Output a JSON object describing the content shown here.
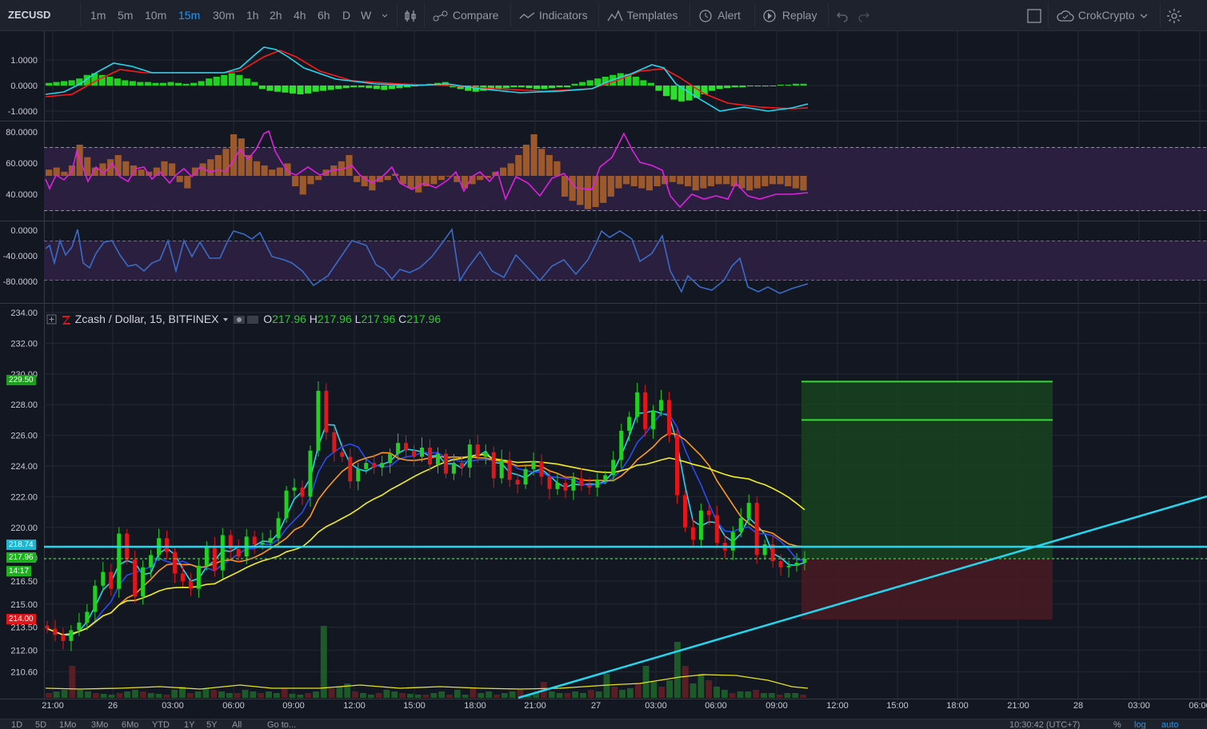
{
  "toolbar": {
    "symbol": "ZECUSD",
    "intervals": [
      "1m",
      "5m",
      "10m",
      "15m",
      "30m",
      "1h",
      "2h",
      "4h",
      "6h",
      "D",
      "W"
    ],
    "active_interval": "15m",
    "compare_label": "Compare",
    "indicators_label": "Indicators",
    "templates_label": "Templates",
    "alert_label": "Alert",
    "replay_label": "Replay",
    "account_label": "CrokCrypto"
  },
  "legend": {
    "symbol_name": "Zcash / Dollar, 15, BITFINEX",
    "open_label": "O",
    "open": "217.96",
    "high_label": "H",
    "high": "217.96",
    "low_label": "L",
    "low": "217.96",
    "close_label": "C",
    "close": "217.96"
  },
  "panes": {
    "macd_axis": [
      "1.0000",
      "0.0000",
      "-1.0000"
    ],
    "rsi_axis": [
      "80.0000",
      "60.0000",
      "40.0000"
    ],
    "wpr_axis": [
      "0.0000",
      "-40.0000",
      "-80.0000"
    ],
    "price_axis": [
      "234.00",
      "232.00",
      "230.00",
      "228.00",
      "226.00",
      "224.00",
      "222.00",
      "220.00",
      "218.00",
      "216.50",
      "215.00",
      "213.50",
      "212.00",
      "210.60"
    ]
  },
  "price_tags": {
    "target": "229.50",
    "level_line": "218.74",
    "current": "217.96",
    "countdown": "14:17",
    "stop": "214.00",
    "colors": {
      "target": "#1b9e1b",
      "level_line": "#1ab6d6",
      "current": "#1fb01f",
      "stop": "#e0161d"
    }
  },
  "time_axis": [
    "21:00",
    "26",
    "03:00",
    "06:00",
    "09:00",
    "12:00",
    "15:00",
    "18:00",
    "21:00",
    "27",
    "03:00",
    "06:00",
    "09:00",
    "12:00",
    "15:00",
    "18:00",
    "21:00",
    "28",
    "03:00",
    "06:00"
  ],
  "bottom_bar": {
    "ranges": [
      "1D",
      "5D",
      "1Mo",
      "3Mo",
      "6Mo",
      "YTD",
      "1Y",
      "5Y",
      "All"
    ],
    "goto": "Go to...",
    "clock": "10:30:42 (UTC+7)",
    "pct": "%",
    "log": "log",
    "auto": "auto"
  },
  "chart_data": {
    "type": "candlestick",
    "symbol": "Zcash / Dollar, 15, BITFINEX",
    "ylim": [
      209.5,
      235.0
    ],
    "price_series": [
      {
        "x": "22:00",
        "y": 213.4
      },
      {
        "x": "23:00",
        "y": 214.5
      },
      {
        "x": "00:00",
        "y": 217.0
      },
      {
        "x": "01:00",
        "y": 217.3
      },
      {
        "x": "02:00",
        "y": 216.4
      },
      {
        "x": "03:00",
        "y": 217.6
      },
      {
        "x": "04:00",
        "y": 218.6
      },
      {
        "x": "05:00",
        "y": 218.3
      },
      {
        "x": "06:00",
        "y": 219.0
      },
      {
        "x": "07:00",
        "y": 222.3
      },
      {
        "x": "08:00",
        "y": 228.6
      },
      {
        "x": "09:00",
        "y": 224.0
      },
      {
        "x": "10:00",
        "y": 223.6
      },
      {
        "x": "11:00",
        "y": 224.1
      },
      {
        "x": "12:00",
        "y": 224.5
      },
      {
        "x": "13:00",
        "y": 225.2
      },
      {
        "x": "14:00",
        "y": 224.6
      },
      {
        "x": "15:00",
        "y": 224.0
      },
      {
        "x": "16:00",
        "y": 224.4
      },
      {
        "x": "17:00",
        "y": 224.7
      },
      {
        "x": "18:00",
        "y": 223.0
      },
      {
        "x": "19:00",
        "y": 223.5
      },
      {
        "x": "20:00",
        "y": 222.7
      },
      {
        "x": "21:00",
        "y": 222.5
      },
      {
        "x": "22:00",
        "y": 222.9
      },
      {
        "x": "23:00",
        "y": 222.6
      },
      {
        "x": "00:00",
        "y": 223.4
      },
      {
        "x": "01:00",
        "y": 225.9
      },
      {
        "x": "02:00",
        "y": 228.5
      },
      {
        "x": "03:00",
        "y": 228.0
      },
      {
        "x": "04:00",
        "y": 221.0
      },
      {
        "x": "05:00",
        "y": 220.2
      },
      {
        "x": "06:00",
        "y": 218.8
      },
      {
        "x": "07:00",
        "y": 220.6
      },
      {
        "x": "08:00",
        "y": 217.6
      },
      {
        "x": "09:00",
        "y": 217.6
      },
      {
        "x": "10:00",
        "y": 217.96
      }
    ],
    "levels": {
      "target_1": 229.5,
      "target_2": 227.0,
      "horizontal_line": 218.74,
      "current": 217.96,
      "stop": 214.0
    },
    "trendline": {
      "from": {
        "x": "21:00 (26)",
        "y": 209.5
      },
      "to": {
        "x": "06:00 (28)",
        "y": 221.8
      }
    },
    "moving_averages": [
      "cyan",
      "blue",
      "orange",
      "yellow"
    ],
    "indicators": [
      "MACD",
      "RSI",
      "Williams %R",
      "Volume"
    ],
    "colors": {
      "up": "#22d022",
      "down": "#e0161d",
      "background": "#131722",
      "grid": "#2a2e39"
    }
  }
}
